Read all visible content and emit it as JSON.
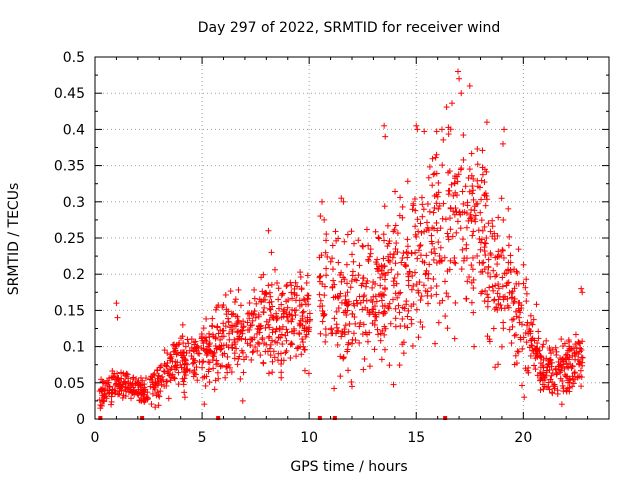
{
  "chart_data": {
    "type": "scatter",
    "title": "Day 297 of 2022, SRMTID for receiver wind",
    "xlabel": "GPS time / hours",
    "ylabel": "SRMTID / TECUs",
    "xlim": [
      0,
      24
    ],
    "ylim": [
      0,
      0.5
    ],
    "grid": true,
    "marker": "+",
    "color": "#ff0000",
    "x_ticks": [
      0,
      5,
      10,
      15,
      20
    ],
    "x_tick_labels": [
      "0",
      "5",
      "10",
      "15",
      "20"
    ],
    "y_ticks": [
      0,
      0.05,
      0.1,
      0.15,
      0.2,
      0.25,
      0.3,
      0.35,
      0.4,
      0.45,
      0.5
    ],
    "y_tick_labels": [
      "0",
      "0.05",
      "0.1",
      "0.15",
      "0.2",
      "0.25",
      "0.3",
      "0.35",
      "0.4",
      "0.45",
      "0.5"
    ],
    "gap_markers_x": [
      0.25,
      2.2,
      5.75,
      10.5,
      11.2,
      16.35
    ],
    "trend": [
      [
        0.2,
        0.035
      ],
      [
        0.5,
        0.04
      ],
      [
        1.0,
        0.05
      ],
      [
        1.5,
        0.045
      ],
      [
        2.0,
        0.04
      ],
      [
        2.5,
        0.04
      ],
      [
        3.0,
        0.05
      ],
      [
        3.5,
        0.07
      ],
      [
        4.0,
        0.085
      ],
      [
        4.5,
        0.08
      ],
      [
        5.0,
        0.09
      ],
      [
        5.5,
        0.095
      ],
      [
        6.0,
        0.11
      ],
      [
        6.5,
        0.115
      ],
      [
        7.0,
        0.12
      ],
      [
        7.5,
        0.13
      ],
      [
        8.0,
        0.14
      ],
      [
        8.5,
        0.14
      ],
      [
        9.0,
        0.135
      ],
      [
        9.5,
        0.14
      ],
      [
        10.0,
        0.13
      ],
      [
        10.5,
        0.2
      ],
      [
        11.0,
        0.16
      ],
      [
        11.5,
        0.14
      ],
      [
        12.0,
        0.15
      ],
      [
        12.5,
        0.16
      ],
      [
        13.0,
        0.18
      ],
      [
        13.5,
        0.17
      ],
      [
        14.0,
        0.19
      ],
      [
        14.5,
        0.2
      ],
      [
        15.0,
        0.21
      ],
      [
        15.5,
        0.22
      ],
      [
        16.0,
        0.24
      ],
      [
        16.5,
        0.26
      ],
      [
        17.0,
        0.29
      ],
      [
        17.5,
        0.27
      ],
      [
        18.0,
        0.25
      ],
      [
        18.5,
        0.2
      ],
      [
        19.0,
        0.19
      ],
      [
        19.5,
        0.17
      ],
      [
        20.0,
        0.12
      ],
      [
        20.5,
        0.09
      ],
      [
        21.0,
        0.065
      ],
      [
        21.5,
        0.065
      ],
      [
        22.0,
        0.07
      ],
      [
        22.5,
        0.08
      ],
      [
        22.8,
        0.09
      ]
    ],
    "spread": [
      [
        0,
        0.015
      ],
      [
        2,
        0.015
      ],
      [
        4,
        0.03
      ],
      [
        6,
        0.045
      ],
      [
        8,
        0.06
      ],
      [
        10,
        0.05
      ],
      [
        11,
        0.08
      ],
      [
        13,
        0.08
      ],
      [
        15,
        0.1
      ],
      [
        17,
        0.12
      ],
      [
        18.5,
        0.1
      ],
      [
        20,
        0.06
      ],
      [
        21,
        0.03
      ],
      [
        23,
        0.035
      ]
    ],
    "notable_points": [
      [
        0.25,
        0.015
      ],
      [
        1.0,
        0.16
      ],
      [
        1.05,
        0.14
      ],
      [
        4.1,
        0.13
      ],
      [
        8.1,
        0.26
      ],
      [
        10.6,
        0.3
      ],
      [
        10.7,
        0.275
      ],
      [
        11.5,
        0.305
      ],
      [
        11.6,
        0.3
      ],
      [
        13.5,
        0.405
      ],
      [
        13.55,
        0.39
      ],
      [
        15.0,
        0.405
      ],
      [
        15.05,
        0.4
      ],
      [
        15.95,
        0.365
      ],
      [
        16.2,
        0.4
      ],
      [
        16.95,
        0.48
      ],
      [
        17.0,
        0.47
      ],
      [
        17.1,
        0.45
      ],
      [
        17.5,
        0.46
      ],
      [
        18.3,
        0.41
      ],
      [
        19.1,
        0.4
      ],
      [
        19.05,
        0.38
      ],
      [
        17.7,
        0.1
      ],
      [
        20.8,
        0.04
      ],
      [
        22.7,
        0.18
      ],
      [
        22.75,
        0.175
      ],
      [
        6.9,
        0.025
      ],
      [
        19.8,
        0.14
      ],
      [
        12.0,
        0.045
      ],
      [
        11.6,
        0.085
      ]
    ]
  }
}
